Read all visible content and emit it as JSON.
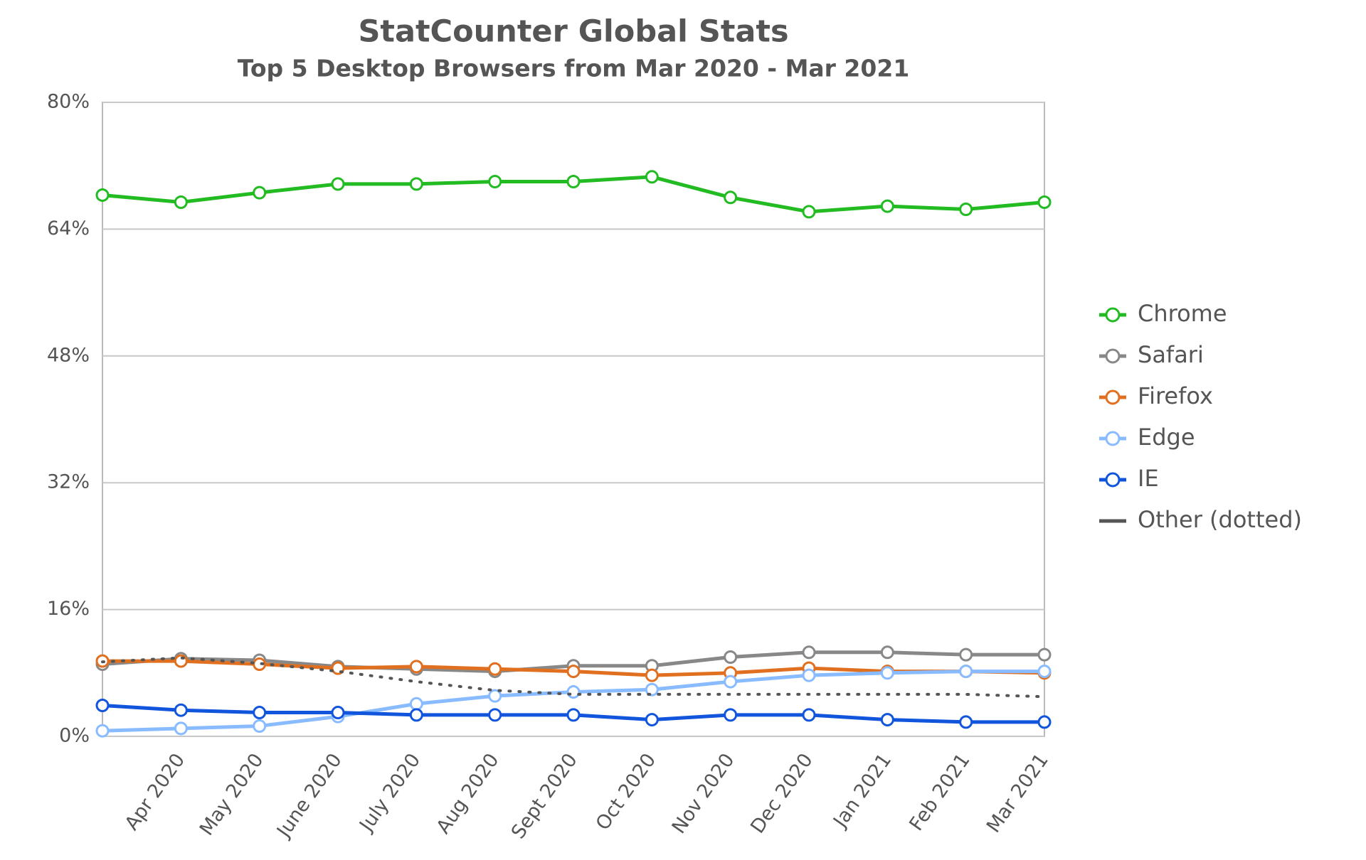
{
  "chart_data": {
    "type": "line",
    "title": "StatCounter Global Stats",
    "subtitle": "Top 5 Desktop Browsers from Mar 2020 - Mar 2021",
    "categories": [
      null,
      "Apr 2020",
      "May 2020",
      "June 2020",
      "July 2020",
      "Aug 2020",
      "Sept 2020",
      "Oct 2020",
      "Nov 2020",
      "Dec 2020",
      "Jan 2021",
      "Feb 2021",
      "Mar 2021"
    ],
    "series": [
      {
        "name": "Chrome",
        "color": "#22bb22",
        "markers": true,
        "values": [
          68.3,
          67.4,
          68.6,
          69.7,
          69.7,
          70.0,
          70.0,
          70.6,
          68.0,
          66.2,
          66.9,
          66.5,
          67.4
        ]
      },
      {
        "name": "Safari",
        "color": "#888888",
        "markers": true,
        "values": [
          9.1,
          9.8,
          9.6,
          8.8,
          8.5,
          8.2,
          8.9,
          8.9,
          10.0,
          10.6,
          10.6,
          10.3,
          10.3
        ]
      },
      {
        "name": "Firefox",
        "color": "#e07020",
        "markers": true,
        "values": [
          9.5,
          9.5,
          9.1,
          8.6,
          8.8,
          8.5,
          8.2,
          7.7,
          8.0,
          8.6,
          8.2,
          8.2,
          8.0
        ]
      },
      {
        "name": "Edge",
        "color": "#88bbff",
        "markers": true,
        "values": [
          0.7,
          1.0,
          1.3,
          2.5,
          4.1,
          5.1,
          5.6,
          5.9,
          6.9,
          7.7,
          8.0,
          8.2,
          8.2
        ]
      },
      {
        "name": "IE",
        "color": "#1155dd",
        "markers": true,
        "values": [
          3.9,
          3.3,
          3.0,
          3.0,
          2.7,
          2.7,
          2.7,
          2.1,
          2.7,
          2.7,
          2.1,
          1.8,
          1.8
        ]
      },
      {
        "name": "Other (dotted)",
        "color": "#555555",
        "markers": false,
        "dash": "dotted",
        "values": [
          9.4,
          9.9,
          9.2,
          8.2,
          6.9,
          5.8,
          5.3,
          5.3,
          5.3,
          5.3,
          5.3,
          5.3,
          5.0
        ]
      }
    ],
    "ylim": [
      0,
      80
    ],
    "yticks": [
      {
        "value": 0,
        "label": "0%"
      },
      {
        "value": 16,
        "label": "16%"
      },
      {
        "value": 32,
        "label": "32%"
      },
      {
        "value": 48,
        "label": "48%"
      },
      {
        "value": 64,
        "label": "64%"
      },
      {
        "value": 80,
        "label": "80%"
      }
    ],
    "grid": true,
    "legend": "right"
  }
}
